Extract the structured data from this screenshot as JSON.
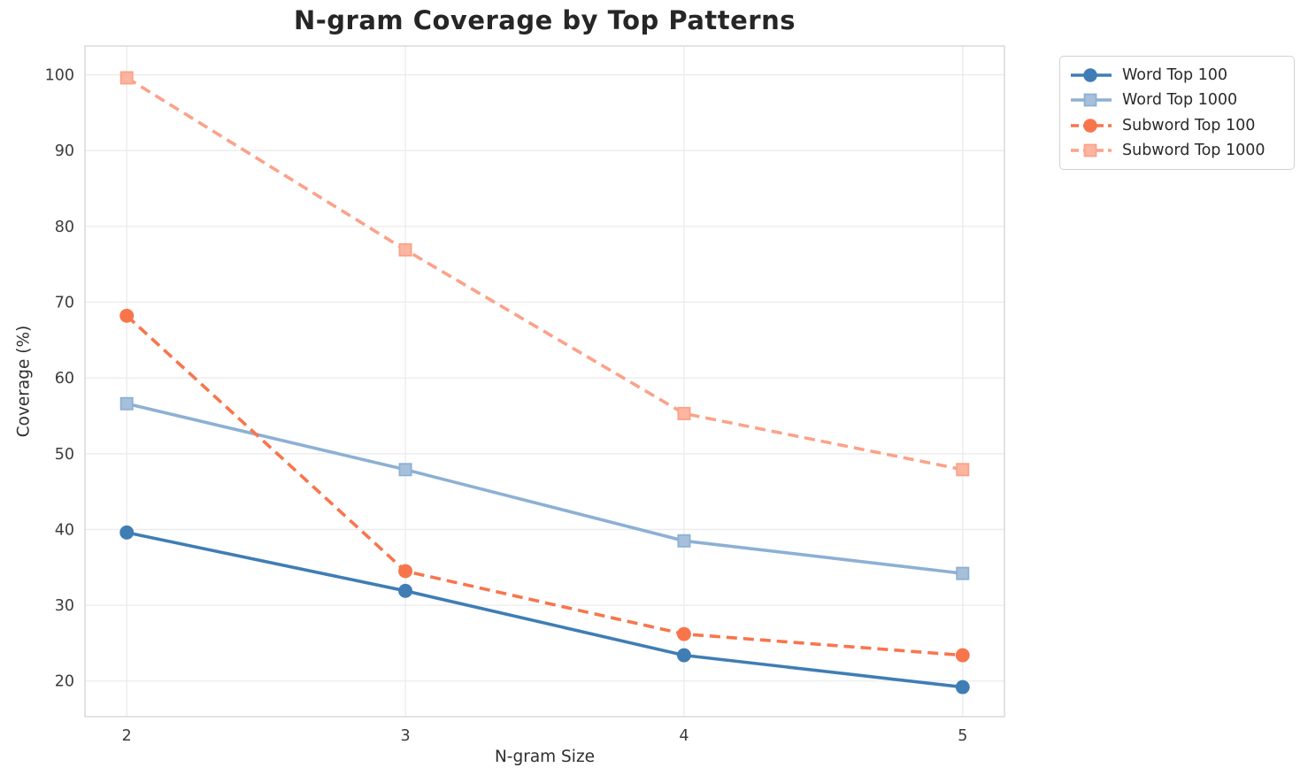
{
  "chart_data": {
    "type": "line",
    "title": "N-gram Coverage by Top Patterns",
    "xlabel": "N-gram Size",
    "ylabel": "Coverage (%)",
    "x": [
      2,
      3,
      4,
      5
    ],
    "x_tick_labels": [
      "2",
      "3",
      "4",
      "5"
    ],
    "y_ticks": [
      20,
      30,
      40,
      50,
      60,
      70,
      80,
      90,
      100
    ],
    "y_tick_labels": [
      "20",
      "30",
      "40",
      "50",
      "60",
      "70",
      "80",
      "90",
      "100"
    ],
    "xlim": [
      1.85,
      5.15
    ],
    "ylim": [
      15.3,
      103.8
    ],
    "grid": true,
    "legend_position": "outside-upper-right",
    "series": [
      {
        "name": "Word Top 100",
        "values": [
          39.6,
          31.9,
          23.4,
          19.2
        ],
        "color": "#3f7db5",
        "marker_fill": "#3f7db5",
        "marker": "circle",
        "line_style": "solid"
      },
      {
        "name": "Word Top 1000",
        "values": [
          56.6,
          47.9,
          38.5,
          34.2
        ],
        "color": "#8db0d4",
        "marker_fill": "#a6c0dc",
        "marker": "square",
        "line_style": "solid"
      },
      {
        "name": "Subword Top 100",
        "values": [
          68.2,
          34.5,
          26.2,
          23.4
        ],
        "color": "#f8754c",
        "marker_fill": "#f8754c",
        "marker": "circle",
        "line_style": "dashed"
      },
      {
        "name": "Subword Top 1000",
        "values": [
          99.6,
          76.9,
          55.3,
          47.9
        ],
        "color": "#fba289",
        "marker_fill": "#fcb5a0",
        "marker": "square",
        "line_style": "dashed"
      }
    ],
    "style": {
      "grid_color": "#ebebeb",
      "spine_color": "#d4d4d4",
      "tick_label_color": "#3c3c3c",
      "background": "#ffffff"
    }
  }
}
